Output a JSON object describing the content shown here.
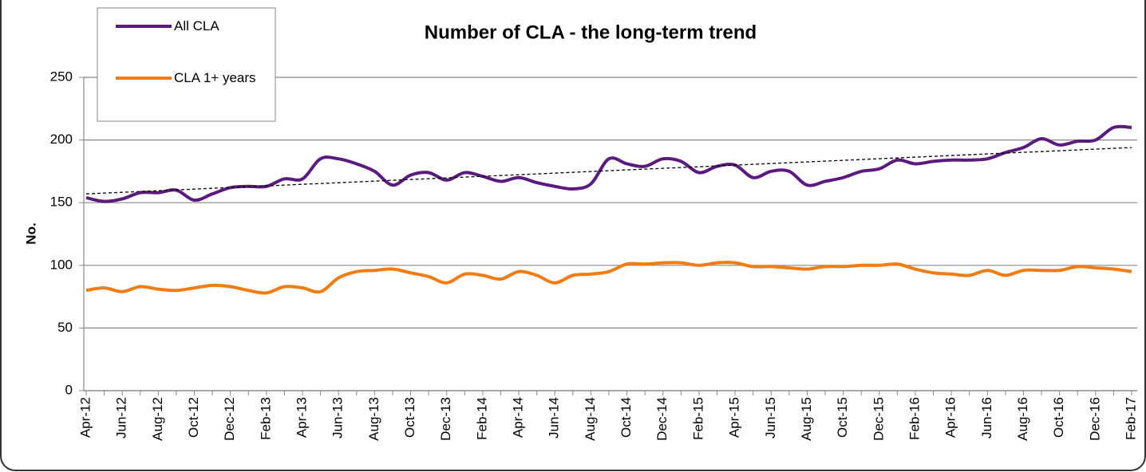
{
  "chart_data": {
    "type": "line",
    "title": "Number of CLA - the long-term trend",
    "y_label": "No.",
    "categories": [
      "Apr-12",
      null,
      "Jun-12",
      null,
      "Aug-12",
      null,
      "Oct-12",
      null,
      "Dec-12",
      null,
      "Feb-13",
      null,
      "Apr-13",
      null,
      "Jun-13",
      null,
      "Aug-13",
      null,
      "Oct-13",
      null,
      "Dec-13",
      null,
      "Feb-14",
      null,
      "Apr-14",
      null,
      "Jun-14",
      null,
      "Aug-14",
      null,
      "Oct-14",
      null,
      "Dec-14",
      null,
      "Feb-15",
      null,
      "Apr-15",
      null,
      "Jun-15",
      null,
      "Aug-15",
      null,
      "Oct-15",
      null,
      "Dec-15",
      null,
      "Feb-16",
      null,
      "Apr-16",
      null,
      "Jun-16",
      null,
      "Aug-16",
      null,
      "Oct-16",
      null,
      "Dec-16",
      null,
      "Feb-17"
    ],
    "series": [
      {
        "name": "All CLA",
        "color": "#5b1a7e",
        "values": [
          154,
          151,
          153,
          158,
          158,
          160,
          152,
          157,
          162,
          163,
          163,
          169,
          169,
          185,
          185,
          181,
          175,
          164,
          172,
          174,
          168,
          174,
          171,
          167,
          170,
          166,
          163,
          161,
          165,
          185,
          181,
          179,
          185,
          183,
          174,
          179,
          180,
          170,
          175,
          175,
          164,
          167,
          170,
          175,
          177,
          184,
          181,
          183,
          184,
          184,
          185,
          190,
          194,
          201,
          196,
          199,
          200,
          210,
          210
        ]
      },
      {
        "name": "CLA 1+ years",
        "color": "#f07c12",
        "values": [
          80,
          82,
          79,
          83,
          81,
          80,
          82,
          84,
          83,
          80,
          78,
          83,
          82,
          79,
          90,
          95,
          96,
          97,
          94,
          91,
          86,
          93,
          92,
          89,
          95,
          92,
          86,
          92,
          93,
          95,
          101,
          101,
          102,
          102,
          100,
          102,
          102,
          99,
          99,
          98,
          97,
          99,
          99,
          100,
          100,
          101,
          97,
          94,
          93,
          92,
          96,
          92,
          96,
          96,
          96,
          99,
          98,
          97,
          95
        ]
      }
    ],
    "trendline": {
      "series": 0,
      "start": 157,
      "end": 194,
      "color": "#000000"
    },
    "ylim": [
      0,
      250
    ],
    "yticks": [
      0,
      50,
      100,
      150,
      200,
      250
    ],
    "grid": true
  }
}
